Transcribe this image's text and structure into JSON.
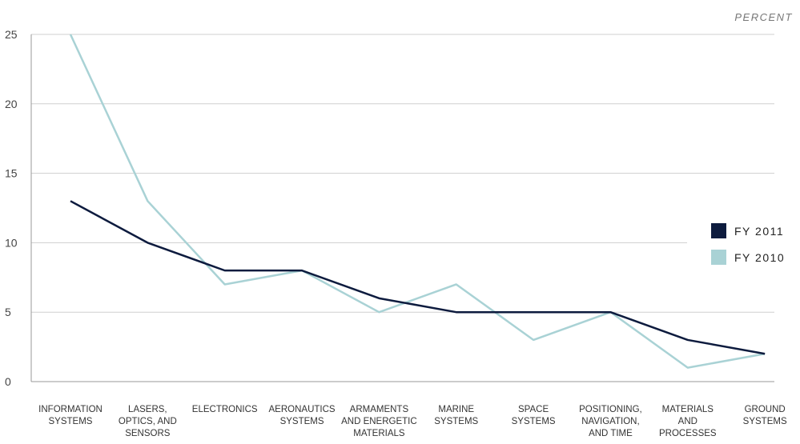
{
  "chart_data": {
    "type": "line",
    "unit_label": "PERCENT",
    "categories": [
      [
        "INFORMATION",
        "SYSTEMS"
      ],
      [
        "LASERS,",
        "OPTICS, AND",
        "SENSORS"
      ],
      [
        "ELECTRONICS"
      ],
      [
        "AERONAUTICS",
        "SYSTEMS"
      ],
      [
        "ARMAMENTS",
        "AND ENERGETIC",
        "MATERIALS"
      ],
      [
        "MARINE",
        "SYSTEMS"
      ],
      [
        "SPACE",
        "SYSTEMS"
      ],
      [
        "POSITIONING,",
        "NAVIGATION,",
        "AND TIME"
      ],
      [
        "MATERIALS",
        "AND",
        "PROCESSES"
      ],
      [
        "GROUND",
        "SYSTEMS"
      ]
    ],
    "series": [
      {
        "name": "FY 2011",
        "color": "#0d1b3e",
        "values": [
          13,
          10,
          8,
          8,
          6,
          5,
          5,
          5,
          3,
          2
        ]
      },
      {
        "name": "FY 2010",
        "color": "#a9d2d5",
        "values": [
          25,
          13,
          7,
          8,
          5,
          7,
          3,
          5,
          1,
          2
        ]
      }
    ],
    "ylim": [
      0,
      25
    ],
    "yticks": [
      "0",
      "5",
      "10",
      "15",
      "20",
      "25"
    ],
    "grid": true,
    "legend_position": "right"
  }
}
